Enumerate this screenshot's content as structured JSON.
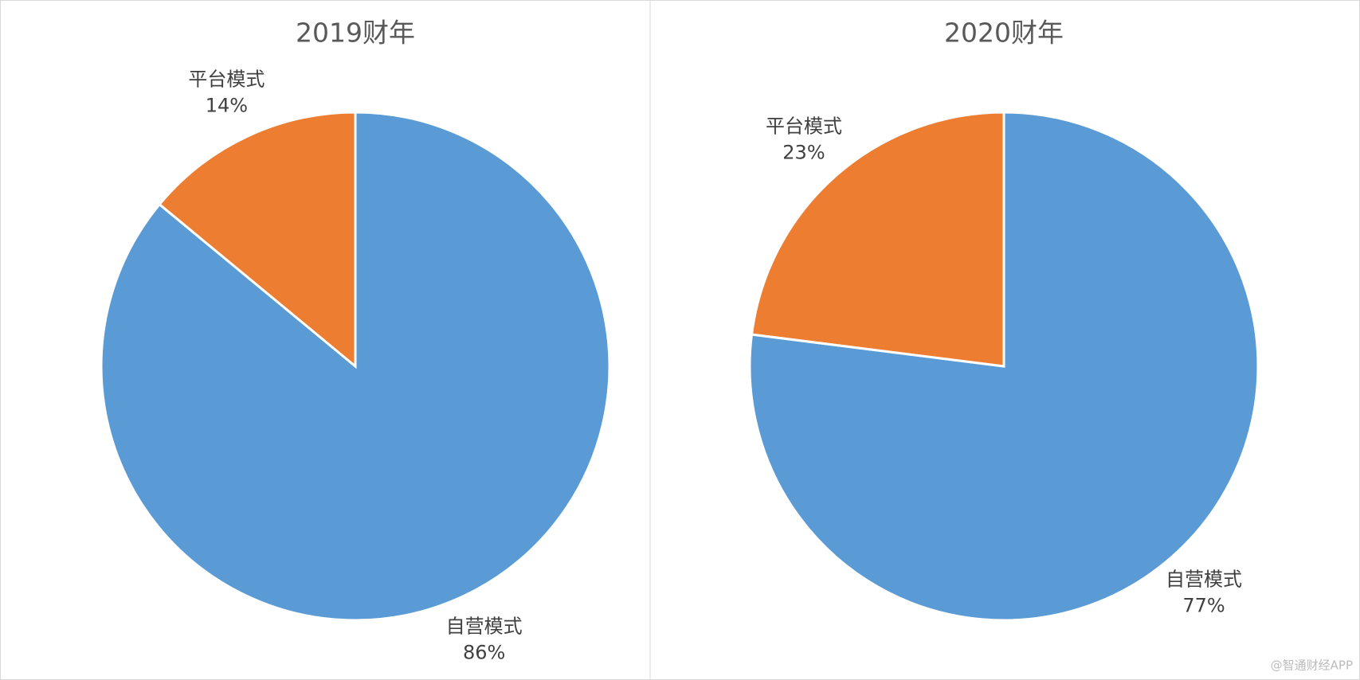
{
  "chart_data": [
    {
      "type": "pie",
      "title": "2019财年",
      "categories": [
        "自营模式",
        "平台模式"
      ],
      "values": [
        86,
        14
      ],
      "value_labels": [
        "86%",
        "14%"
      ],
      "colors": [
        "#5b9bd5",
        "#ed7d31"
      ]
    },
    {
      "type": "pie",
      "title": "2020财年",
      "categories": [
        "自营模式",
        "平台模式"
      ],
      "values": [
        77,
        23
      ],
      "value_labels": [
        "77%",
        "23%"
      ],
      "colors": [
        "#5b9bd5",
        "#ed7d31"
      ]
    }
  ],
  "watermark": "@智通财经APP"
}
